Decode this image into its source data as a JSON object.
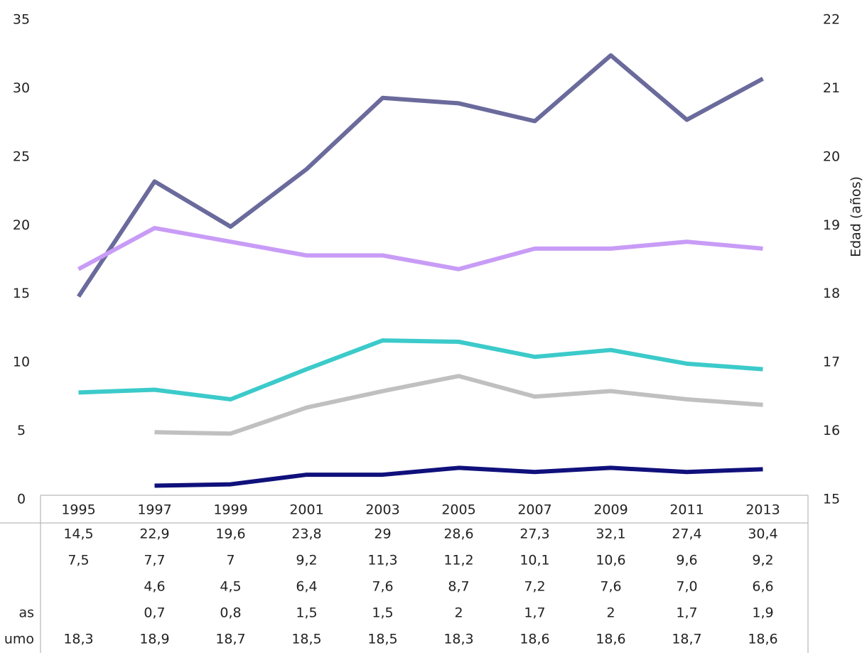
{
  "chart_data": {
    "type": "line",
    "categories": [
      "1995",
      "1997",
      "1999",
      "2001",
      "2003",
      "2005",
      "2007",
      "2009",
      "2011",
      "2013"
    ],
    "series": [
      {
        "color": "#6a6a9c",
        "values": [
          14.5,
          22.9,
          19.6,
          23.8,
          29,
          28.6,
          27.3,
          32.1,
          27.4,
          30.4
        ],
        "value_labels": [
          "14,5",
          "22,9",
          "19,6",
          "23,8",
          "29",
          "28,6",
          "27,3",
          "32,1",
          "27,4",
          "30,4"
        ]
      },
      {
        "color": "#3ccaca",
        "values": [
          7.5,
          7.7,
          7,
          9.2,
          11.3,
          11.2,
          10.1,
          10.6,
          9.6,
          9.2
        ],
        "value_labels": [
          "7,5",
          "7,7",
          "7",
          "9,2",
          "11,3",
          "11,2",
          "10,1",
          "10,6",
          "9,6",
          "9,2"
        ]
      },
      {
        "color": "#c0c0c0",
        "values": [
          null,
          4.6,
          4.5,
          6.4,
          7.6,
          8.7,
          7.2,
          7.6,
          7.0,
          6.6
        ],
        "value_labels": [
          null,
          "4,6",
          "4,5",
          "6,4",
          "7,6",
          "8,7",
          "7,2",
          "7,6",
          "7,0",
          "6,6"
        ]
      },
      {
        "name": "as",
        "color": "#10107c",
        "values": [
          null,
          0.7,
          0.8,
          1.5,
          1.5,
          2,
          1.7,
          2,
          1.7,
          1.9
        ],
        "value_labels": [
          null,
          "0,7",
          "0,8",
          "1,5",
          "1,5",
          "2",
          "1,7",
          "2",
          "1,7",
          "1,9"
        ]
      },
      {
        "name": "umo",
        "color": "#c89cf6",
        "axis": "y2",
        "values": [
          18.3,
          18.9,
          18.7,
          18.5,
          18.5,
          18.3,
          18.6,
          18.6,
          18.7,
          18.6
        ],
        "value_labels": [
          "18,3",
          "18,9",
          "18,7",
          "18,5",
          "18,5",
          "18,3",
          "18,6",
          "18,6",
          "18,7",
          "18,6"
        ]
      }
    ],
    "ylim": [
      0,
      35
    ],
    "yticks": [
      0,
      5,
      10,
      15,
      20,
      25,
      30,
      35
    ],
    "y2lim": [
      15,
      22
    ],
    "y2ticks": [
      15,
      16,
      17,
      18,
      19,
      20,
      21,
      22
    ],
    "y2label": "Edad (años)"
  }
}
